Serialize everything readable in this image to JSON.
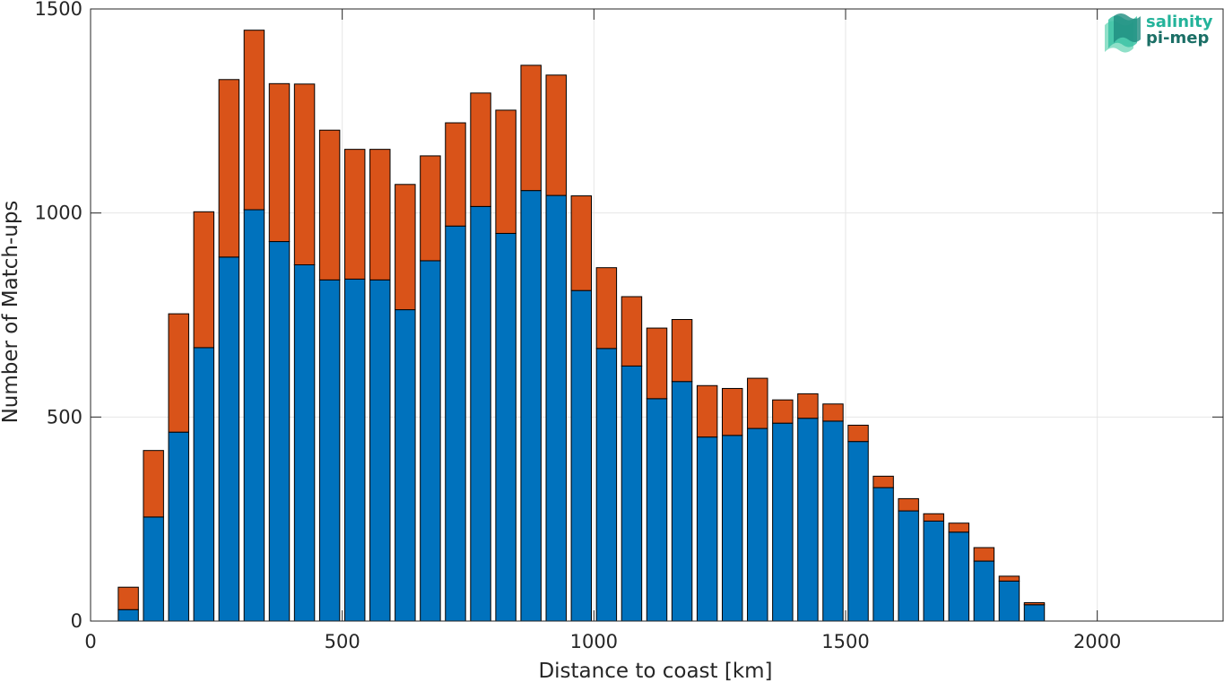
{
  "logo": {
    "line1": "salinity",
    "line2": "pi-mep"
  },
  "colors": {
    "series1": "#0072bd",
    "series2": "#d95319",
    "grid": "#e6e6e6",
    "axis": "#262626"
  },
  "chart_data": {
    "type": "bar",
    "stacked": true,
    "xlabel": "Distance to coast [km]",
    "ylabel": "Number of Match-ups",
    "xlim": [
      0,
      2250
    ],
    "ylim": [
      0,
      1500
    ],
    "xticks": [
      0,
      500,
      1000,
      1500,
      2000
    ],
    "yticks": [
      0,
      500,
      1000,
      1500
    ],
    "grid": true,
    "x": [
      75,
      125,
      175,
      225,
      275,
      325,
      375,
      425,
      475,
      525,
      575,
      625,
      675,
      725,
      775,
      825,
      875,
      925,
      975,
      1025,
      1075,
      1125,
      1175,
      1225,
      1275,
      1325,
      1375,
      1425,
      1475,
      1525,
      1575,
      1625,
      1675,
      1725,
      1775,
      1825,
      1875
    ],
    "series": [
      {
        "values": [
          28,
          255,
          463,
          670,
          892,
          1008,
          930,
          873,
          836,
          838,
          836,
          763,
          883,
          968,
          1016,
          950,
          1055,
          1043,
          810,
          668,
          625,
          545,
          587,
          451,
          455,
          472,
          485,
          497,
          490,
          440,
          327,
          270,
          245,
          218,
          147,
          98,
          40
        ]
      },
      {
        "values": [
          55,
          163,
          290,
          333,
          435,
          440,
          387,
          443,
          367,
          318,
          320,
          307,
          257,
          253,
          278,
          302,
          307,
          295,
          232,
          198,
          170,
          173,
          152,
          126,
          115,
          123,
          57,
          60,
          42,
          40,
          28,
          30,
          18,
          22,
          33,
          12,
          5
        ]
      }
    ]
  }
}
